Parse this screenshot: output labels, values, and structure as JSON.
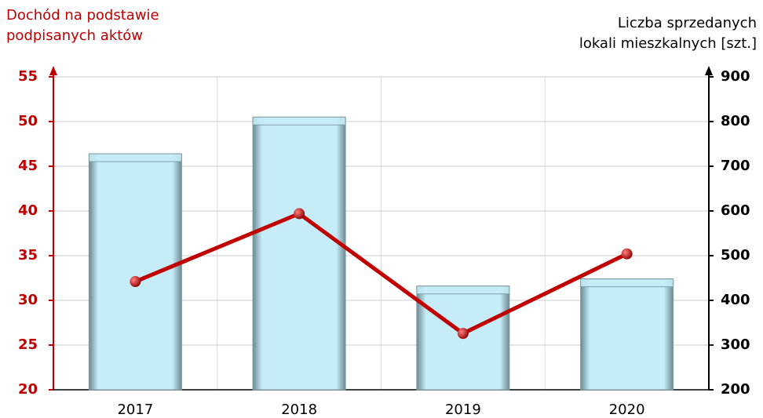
{
  "chart_data": {
    "type": "bar-line",
    "ylabel": "Dochód na podstawie\npodpisanych aktów",
    "y2label": "Liczba sprzedanych\nlokali mieszkalnych [szt.]",
    "categories": [
      "2017",
      "2018",
      "2019",
      "2020"
    ],
    "series": [
      {
        "type": "bar",
        "axis": "y2",
        "color": "#c6ecf7",
        "values": [
          728,
          810,
          432,
          448
        ]
      },
      {
        "type": "line",
        "axis": "y",
        "color": "#c00000",
        "values": [
          32.1,
          39.7,
          26.3,
          35.2
        ]
      }
    ],
    "ylim": [
      20,
      55
    ],
    "yticks": [
      20,
      25,
      30,
      35,
      40,
      45,
      50,
      55
    ],
    "y2lim": [
      200,
      900
    ],
    "y2ticks": [
      200,
      300,
      400,
      500,
      600,
      700,
      800,
      900
    ],
    "grid": true
  }
}
